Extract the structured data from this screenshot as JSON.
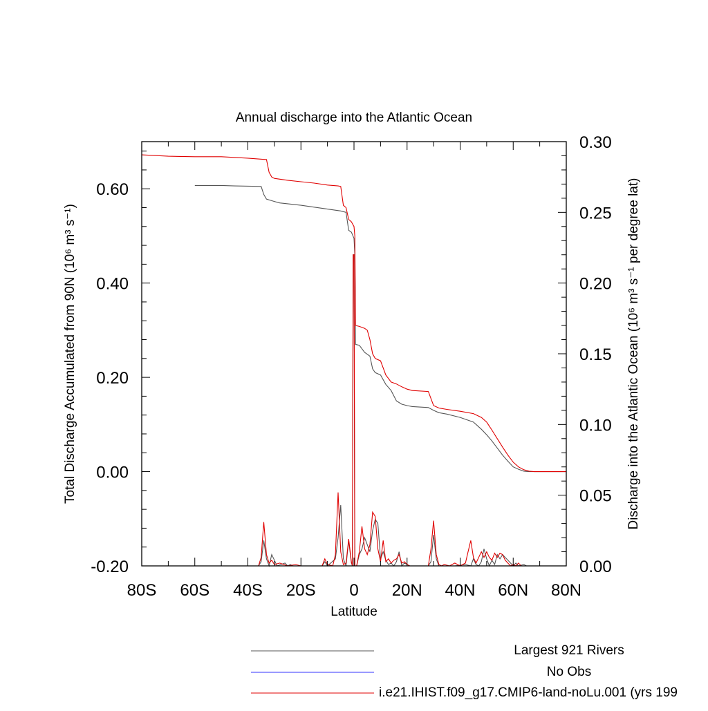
{
  "chart_data": {
    "type": "line",
    "title": "Annual discharge into the Atlantic Ocean",
    "xlabel": "Latitude",
    "ylabel_left": "Total Discharge Accumulated from 90N (10⁶ m³ s⁻¹)",
    "ylabel_right": "Discharge into the Atlantic Ocean (10⁶ m³ s⁻¹ per degree lat)",
    "xlim": [
      -80,
      80
    ],
    "ylim_left": [
      -0.2,
      0.7
    ],
    "ylim_right": [
      0.0,
      0.3
    ],
    "grid": false,
    "legend_position": "bottom",
    "x_ticks": [
      -80,
      -60,
      -40,
      -20,
      0,
      20,
      40,
      60,
      80
    ],
    "x_tick_labels": [
      "80S",
      "60S",
      "40S",
      "20S",
      "0",
      "20N",
      "40N",
      "60N",
      "80N"
    ],
    "yleft_ticks": [
      -0.2,
      0.0,
      0.2,
      0.4,
      0.6
    ],
    "yleft_tick_labels": [
      "-0.20",
      "0.00",
      "0.20",
      "0.40",
      "0.60"
    ],
    "yright_ticks": [
      0.0,
      0.05,
      0.1,
      0.15,
      0.2,
      0.25,
      0.3
    ],
    "yright_tick_labels": [
      "0.00",
      "0.05",
      "0.10",
      "0.15",
      "0.20",
      "0.25",
      "0.30"
    ],
    "series": [
      {
        "name": "Largest 921 Rivers",
        "color": "#555555",
        "axis": "left",
        "points": [
          [
            -60,
            0.607
          ],
          [
            -50,
            0.607
          ],
          [
            -45,
            0.606
          ],
          [
            -35,
            0.605
          ],
          [
            -34,
            0.588
          ],
          [
            -33,
            0.578
          ],
          [
            -30,
            0.573
          ],
          [
            -28,
            0.57
          ],
          [
            -20,
            0.565
          ],
          [
            -10,
            0.557
          ],
          [
            -5,
            0.553
          ],
          [
            -3,
            0.55
          ],
          [
            -2,
            0.512
          ],
          [
            -1,
            0.508
          ],
          [
            0,
            0.495
          ],
          [
            0.3,
            0.46
          ],
          [
            0.6,
            0.27
          ],
          [
            2,
            0.268
          ],
          [
            4,
            0.253
          ],
          [
            6,
            0.245
          ],
          [
            7,
            0.218
          ],
          [
            8,
            0.21
          ],
          [
            10,
            0.205
          ],
          [
            12,
            0.185
          ],
          [
            14,
            0.172
          ],
          [
            16,
            0.15
          ],
          [
            18,
            0.143
          ],
          [
            20,
            0.14
          ],
          [
            22,
            0.138
          ],
          [
            28,
            0.136
          ],
          [
            30,
            0.13
          ],
          [
            32,
            0.125
          ],
          [
            35,
            0.122
          ],
          [
            40,
            0.115
          ],
          [
            45,
            0.105
          ],
          [
            48,
            0.09
          ],
          [
            50,
            0.078
          ],
          [
            52,
            0.065
          ],
          [
            54,
            0.05
          ],
          [
            56,
            0.035
          ],
          [
            58,
            0.022
          ],
          [
            60,
            0.01
          ],
          [
            62,
            0.005
          ],
          [
            64,
            0.001
          ],
          [
            66,
            0.0
          ],
          [
            80,
            0.0
          ]
        ]
      },
      {
        "name": "No Obs",
        "color": "#3333ff",
        "axis": "left",
        "points": []
      },
      {
        "name": "i.e21.IHIST.f09_g17.CMIP6-land-noLu.001 (yrs 199",
        "color": "#e00000",
        "axis": "left",
        "points": [
          [
            -80,
            0.672
          ],
          [
            -70,
            0.669
          ],
          [
            -60,
            0.668
          ],
          [
            -50,
            0.668
          ],
          [
            -40,
            0.665
          ],
          [
            -33,
            0.662
          ],
          [
            -32,
            0.635
          ],
          [
            -31,
            0.625
          ],
          [
            -30,
            0.622
          ],
          [
            -25,
            0.618
          ],
          [
            -20,
            0.615
          ],
          [
            -15,
            0.612
          ],
          [
            -10,
            0.608
          ],
          [
            -6,
            0.606
          ],
          [
            -5,
            0.605
          ],
          [
            -4,
            0.565
          ],
          [
            -3,
            0.56
          ],
          [
            -2,
            0.535
          ],
          [
            -1,
            0.53
          ],
          [
            0,
            0.52
          ],
          [
            0.3,
            0.5
          ],
          [
            0.6,
            0.31
          ],
          [
            2,
            0.308
          ],
          [
            4,
            0.304
          ],
          [
            5,
            0.3
          ],
          [
            6,
            0.28
          ],
          [
            7,
            0.25
          ],
          [
            8,
            0.24
          ],
          [
            10,
            0.235
          ],
          [
            12,
            0.205
          ],
          [
            14,
            0.19
          ],
          [
            16,
            0.186
          ],
          [
            18,
            0.18
          ],
          [
            20,
            0.175
          ],
          [
            22,
            0.172
          ],
          [
            28,
            0.17
          ],
          [
            30,
            0.14
          ],
          [
            32,
            0.135
          ],
          [
            35,
            0.132
          ],
          [
            40,
            0.128
          ],
          [
            45,
            0.123
          ],
          [
            48,
            0.115
          ],
          [
            50,
            0.105
          ],
          [
            52,
            0.088
          ],
          [
            54,
            0.07
          ],
          [
            56,
            0.052
          ],
          [
            58,
            0.035
          ],
          [
            60,
            0.02
          ],
          [
            62,
            0.01
          ],
          [
            64,
            0.004
          ],
          [
            66,
            0.001
          ],
          [
            68,
            0.0
          ],
          [
            80,
            0.0
          ]
        ]
      },
      {
        "name": "Largest 921 Rivers",
        "color": "#555555",
        "axis": "right",
        "points": [
          [
            -80,
            0.0
          ],
          [
            -36,
            0.0
          ],
          [
            -35,
            0.003
          ],
          [
            -34,
            0.018
          ],
          [
            -33,
            0.005
          ],
          [
            -32,
            0.0
          ],
          [
            -31,
            0.008
          ],
          [
            -30,
            0.004
          ],
          [
            -29,
            0.0
          ],
          [
            -26,
            0.002
          ],
          [
            -25,
            0.0
          ],
          [
            -24,
            0.001
          ],
          [
            -23,
            0.0
          ],
          [
            -12,
            0.0
          ],
          [
            -11,
            0.003
          ],
          [
            -10,
            0.0
          ],
          [
            -7,
            0.005
          ],
          [
            -6,
            0.02
          ],
          [
            -5,
            0.043
          ],
          [
            -4,
            0.005
          ],
          [
            -3,
            0.0
          ],
          [
            -2,
            0.018
          ],
          [
            -1,
            0.002
          ],
          [
            -0.6,
            0.0
          ],
          [
            -0.3,
            0.22
          ],
          [
            0,
            0.22
          ],
          [
            0.3,
            0.0
          ],
          [
            1,
            0.0
          ],
          [
            2,
            0.008
          ],
          [
            3,
            0.012
          ],
          [
            4,
            0.02
          ],
          [
            5,
            0.015
          ],
          [
            6,
            0.01
          ],
          [
            7,
            0.025
          ],
          [
            8,
            0.033
          ],
          [
            9,
            0.03
          ],
          [
            10,
            0.005
          ],
          [
            11,
            0.01
          ],
          [
            12,
            0.004
          ],
          [
            13,
            0.001
          ],
          [
            14,
            0.002
          ],
          [
            15,
            0.0
          ],
          [
            16,
            0.003
          ],
          [
            17,
            0.01
          ],
          [
            18,
            0.0
          ],
          [
            19,
            0.002
          ],
          [
            20,
            0.001
          ],
          [
            21,
            0.0
          ],
          [
            28,
            0.0
          ],
          [
            29,
            0.003
          ],
          [
            30,
            0.022
          ],
          [
            31,
            0.005
          ],
          [
            32,
            0.0
          ],
          [
            36,
            0.0
          ],
          [
            38,
            0.0
          ],
          [
            42,
            0.001
          ],
          [
            44,
            0.0
          ],
          [
            45,
            0.005
          ],
          [
            46,
            0.001
          ],
          [
            47,
            0.0
          ],
          [
            48,
            0.003
          ],
          [
            49,
            0.012
          ],
          [
            50,
            0.005
          ],
          [
            51,
            0.0
          ],
          [
            52,
            0.004
          ],
          [
            53,
            0.001
          ],
          [
            54,
            0.008
          ],
          [
            55,
            0.005
          ],
          [
            56,
            0.008
          ],
          [
            57,
            0.006
          ],
          [
            58,
            0.004
          ],
          [
            59,
            0.002
          ],
          [
            60,
            0.0
          ],
          [
            61,
            0.002
          ],
          [
            62,
            0.0
          ],
          [
            64,
            0.001
          ],
          [
            65,
            0.0
          ],
          [
            80,
            0.0
          ]
        ]
      },
      {
        "name": "i.e21.IHIST.f09_g17.CMIP6-land-noLu.001 (yrs 199",
        "color": "#e00000",
        "axis": "right",
        "points": [
          [
            -80,
            0.0
          ],
          [
            -36,
            0.0
          ],
          [
            -35,
            0.006
          ],
          [
            -34,
            0.031
          ],
          [
            -33,
            0.008
          ],
          [
            -32,
            0.002
          ],
          [
            -31,
            0.004
          ],
          [
            -30,
            0.001
          ],
          [
            -28,
            0.002
          ],
          [
            -25,
            0.0
          ],
          [
            -22,
            0.001
          ],
          [
            -20,
            0.0
          ],
          [
            -12,
            0.0
          ],
          [
            -11,
            0.005
          ],
          [
            -10,
            0.001
          ],
          [
            -8,
            0.0
          ],
          [
            -7,
            0.008
          ],
          [
            -6,
            0.052
          ],
          [
            -5,
            0.01
          ],
          [
            -4,
            0.001
          ],
          [
            -3,
            0.002
          ],
          [
            -2,
            0.019
          ],
          [
            -1,
            0.003
          ],
          [
            -0.6,
            0.0
          ],
          [
            -0.3,
            0.22
          ],
          [
            0,
            0.22
          ],
          [
            0.3,
            0.0
          ],
          [
            1,
            0.0
          ],
          [
            2,
            0.01
          ],
          [
            3,
            0.028
          ],
          [
            4,
            0.012
          ],
          [
            5,
            0.008
          ],
          [
            6,
            0.015
          ],
          [
            7,
            0.038
          ],
          [
            8,
            0.035
          ],
          [
            9,
            0.012
          ],
          [
            10,
            0.003
          ],
          [
            11,
            0.018
          ],
          [
            12,
            0.003
          ],
          [
            13,
            0.005
          ],
          [
            14,
            0.002
          ],
          [
            15,
            0.004
          ],
          [
            16,
            0.005
          ],
          [
            17,
            0.008
          ],
          [
            18,
            0.002
          ],
          [
            19,
            0.003
          ],
          [
            20,
            0.001
          ],
          [
            21,
            0.0
          ],
          [
            28,
            0.0
          ],
          [
            29,
            0.012
          ],
          [
            30,
            0.032
          ],
          [
            31,
            0.008
          ],
          [
            32,
            0.001
          ],
          [
            33,
            0.0
          ],
          [
            34,
            0.001
          ],
          [
            36,
            0.0
          ],
          [
            38,
            0.002
          ],
          [
            40,
            0.0
          ],
          [
            42,
            0.002
          ],
          [
            43,
            0.01
          ],
          [
            44,
            0.018
          ],
          [
            45,
            0.006
          ],
          [
            46,
            0.002
          ],
          [
            47,
            0.006
          ],
          [
            48,
            0.01
          ],
          [
            49,
            0.006
          ],
          [
            50,
            0.01
          ],
          [
            51,
            0.006
          ],
          [
            52,
            0.004
          ],
          [
            53,
            0.009
          ],
          [
            54,
            0.006
          ],
          [
            55,
            0.009
          ],
          [
            56,
            0.008
          ],
          [
            57,
            0.004
          ],
          [
            58,
            0.002
          ],
          [
            59,
            0.0
          ],
          [
            60,
            0.001
          ],
          [
            61,
            0.0
          ],
          [
            62,
            0.002
          ],
          [
            63,
            0.0
          ],
          [
            80,
            0.0
          ]
        ]
      }
    ],
    "legend": [
      {
        "label": "Largest 921 Rivers",
        "color": "#555555"
      },
      {
        "label": "No Obs",
        "color": "#3333ff"
      },
      {
        "label": "i.e21.IHIST.f09_g17.CMIP6-land-noLu.001 (yrs 199",
        "color": "#e00000"
      }
    ]
  }
}
